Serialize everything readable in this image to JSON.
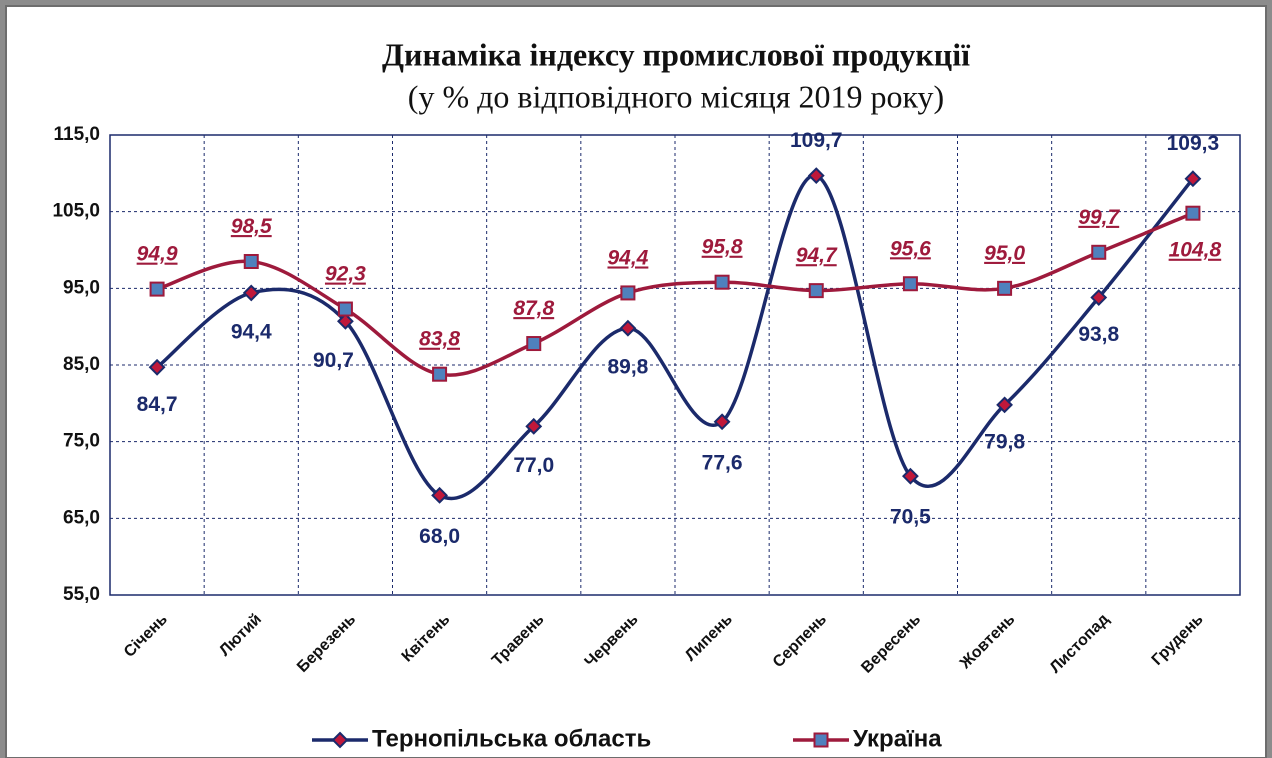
{
  "chart_data": {
    "type": "line",
    "title": "Динаміка індексу промислової продукції",
    "subtitle": "(у % до відповідного місяця 2019 року)",
    "categories": [
      "Січень",
      "Лютий",
      "Березень",
      "Квітень",
      "Травень",
      "Червень",
      "Липень",
      "Серпень",
      "Вересень",
      "Жовтень",
      "Листопад",
      "Грудень"
    ],
    "series": [
      {
        "name": "Тернопільська область",
        "color": "#1b2a6b",
        "marker_fill": "#c0183a",
        "values": [
          84.7,
          94.4,
          90.7,
          68.0,
          77.0,
          89.8,
          77.6,
          109.7,
          70.5,
          79.8,
          93.8,
          109.3
        ],
        "value_labels": [
          "84,7",
          "94,4",
          "90,7",
          "68,0",
          "77,0",
          "89,8",
          "77,6",
          "109,7",
          "70,5",
          "79,8",
          "93,8",
          "109,3"
        ]
      },
      {
        "name": "Україна",
        "color": "#9e1a3c",
        "marker_fill": "#4f81bd",
        "values": [
          94.9,
          98.5,
          92.3,
          83.8,
          87.8,
          94.4,
          95.8,
          94.7,
          95.6,
          95.0,
          99.7,
          104.8
        ],
        "value_labels": [
          "94,9",
          "98,5",
          "92,3",
          "83,8",
          "87,8",
          "94,4",
          "95,8",
          "94,7",
          "95,6",
          "95,0",
          "99,7",
          "104,8"
        ]
      }
    ],
    "ylim": [
      55,
      115
    ],
    "yticks": [
      {
        "value": 55,
        "label": "55,0"
      },
      {
        "value": 65,
        "label": "65,0"
      },
      {
        "value": 75,
        "label": "75,0"
      },
      {
        "value": 85,
        "label": "85,0"
      },
      {
        "value": 95,
        "label": "95,0"
      },
      {
        "value": 105,
        "label": "105,0"
      },
      {
        "value": 115,
        "label": "115,0"
      }
    ],
    "grid": true,
    "legend": "bottom"
  }
}
